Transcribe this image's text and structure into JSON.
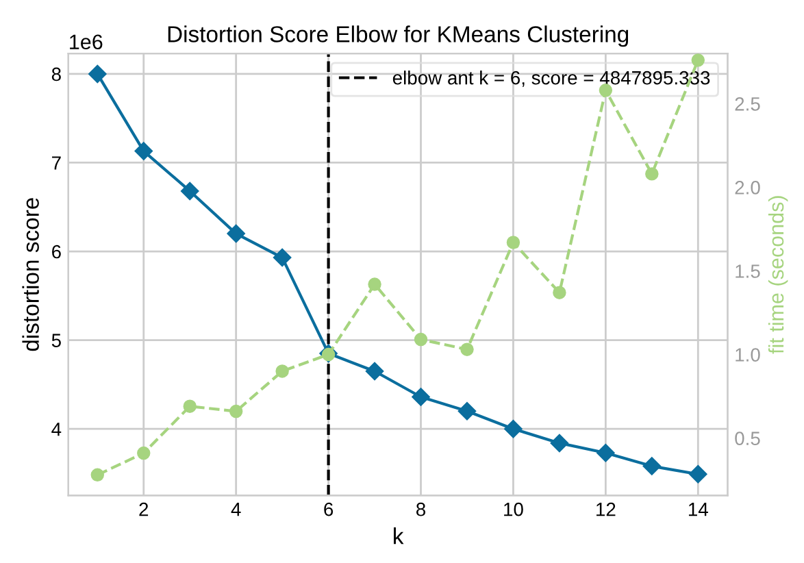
{
  "chart_data": {
    "type": "line",
    "title": "Distortion Score Elbow for KMeans Clustering",
    "xlabel": "k",
    "ylabel": "distortion score",
    "y2label": "fit time (seconds)",
    "x": [
      1,
      2,
      3,
      4,
      5,
      6,
      7,
      8,
      9,
      10,
      11,
      12,
      13,
      14
    ],
    "series": [
      {
        "color": "#0b6e9e",
        "marker": "diamond",
        "line_style": "solid",
        "values": [
          8.0,
          7.13,
          6.68,
          6.2,
          5.93,
          4.85,
          4.65,
          4.36,
          4.2,
          4.0,
          3.84,
          3.73,
          3.58,
          3.49
        ]
      },
      {
        "color": "#a6d47f",
        "marker": "circle",
        "line_style": "dashed",
        "axis": "y2",
        "values": [
          0.28,
          0.41,
          0.69,
          0.66,
          0.9,
          1.0,
          1.42,
          1.09,
          1.03,
          1.67,
          1.37,
          2.58,
          2.08,
          2.76
        ]
      }
    ],
    "xlim": [
      0.37,
      14.64
    ],
    "xticks": [
      2,
      4,
      6,
      8,
      10,
      12,
      14
    ],
    "ylim": [
      3.25,
      8.23
    ],
    "yticks": [
      4,
      5,
      6,
      7,
      8
    ],
    "y2lim": [
      0.157,
      2.8
    ],
    "y2ticks": [
      0.5,
      {
        "value": 1,
        "label": "1.0"
      },
      1.5,
      {
        "value": 2,
        "label": "2.0"
      },
      2.5
    ],
    "ref_lines": [
      {
        "axis": "x",
        "value": 6,
        "label": "elbow ant k = 6, score = 4847895.333",
        "color": "#000000",
        "line_style": "dashed"
      }
    ],
    "annotations": [
      "1e6"
    ],
    "grid": true,
    "legend": "top right"
  }
}
